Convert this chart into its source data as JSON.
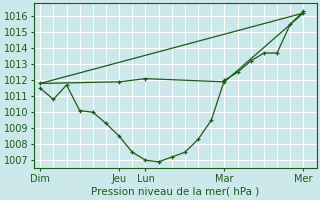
{
  "xlabel": "Pression niveau de la mer( hPa )",
  "bg_color": "#cce8ea",
  "grid_color_major": "#ffffff",
  "grid_color_minor": "#ddeef0",
  "line_color": "#1a5c1a",
  "ylim": [
    1006.5,
    1016.8
  ],
  "yticks": [
    1007,
    1008,
    1009,
    1010,
    1011,
    1012,
    1013,
    1014,
    1015,
    1016
  ],
  "xtick_labels": [
    "Dim",
    "Jeu",
    "Lun",
    "Mar",
    "Mer"
  ],
  "xtick_pos": [
    0,
    6,
    8,
    14,
    20
  ],
  "xlim": [
    -0.5,
    21
  ],
  "series1_x": [
    0,
    1,
    2,
    3,
    4,
    5,
    6,
    7,
    8,
    9,
    10,
    11,
    12,
    13,
    14,
    15,
    16,
    17,
    18,
    19,
    20
  ],
  "series1_y": [
    1011.5,
    1010.8,
    1011.7,
    1010.1,
    1010.0,
    1009.3,
    1008.5,
    1007.5,
    1007.0,
    1006.9,
    1007.2,
    1007.5,
    1008.3,
    1009.5,
    1012.0,
    1012.5,
    1013.2,
    1013.7,
    1013.7,
    1015.5,
    1016.3
  ],
  "series2_x": [
    0,
    6,
    8,
    14,
    20
  ],
  "series2_y": [
    1011.8,
    1011.9,
    1012.1,
    1011.9,
    1016.2
  ],
  "series3_x": [
    0,
    20
  ],
  "series3_y": [
    1011.8,
    1016.2
  ],
  "xlabel_fontsize": 7.5,
  "tick_fontsize": 7
}
